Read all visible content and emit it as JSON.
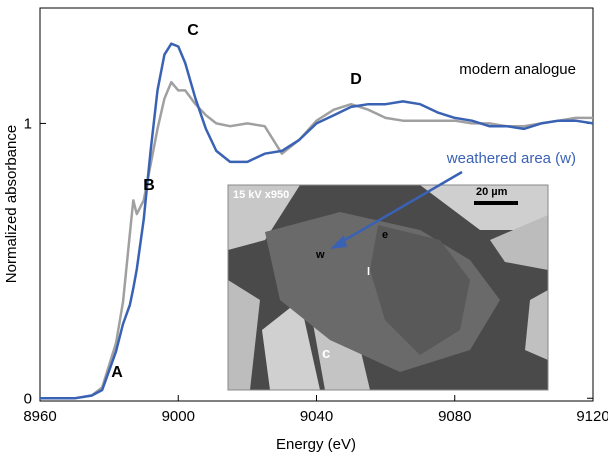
{
  "chart_data": {
    "type": "line",
    "xlabel": "Energy (eV)",
    "ylabel": "Normalized absorbance",
    "xlim": [
      8960,
      9120
    ],
    "xticks": [
      8960,
      9000,
      9040,
      9080,
      9120
    ],
    "ylim": [
      -0.01,
      1.42
    ],
    "yticks": [
      0,
      1
    ],
    "x": [
      8960,
      8970,
      8975,
      8978,
      8982,
      8984,
      8986,
      8987,
      8988,
      8990,
      8992,
      8994,
      8996,
      8998,
      9000,
      9002,
      9005,
      9008,
      9011,
      9015,
      9020,
      9025,
      9030,
      9035,
      9040,
      9045,
      9050,
      9055,
      9060,
      9065,
      9070,
      9075,
      9080,
      9085,
      9090,
      9095,
      9100,
      9105,
      9110,
      9115,
      9120
    ],
    "series": [
      {
        "name": "modern analogue",
        "color": "#a0a0a0",
        "values": [
          0,
          0,
          0.01,
          0.04,
          0.2,
          0.35,
          0.6,
          0.72,
          0.67,
          0.72,
          0.85,
          0.98,
          1.09,
          1.15,
          1.12,
          1.12,
          1.07,
          1.03,
          1.0,
          0.99,
          1.0,
          0.99,
          0.89,
          0.94,
          1.01,
          1.05,
          1.07,
          1.05,
          1.02,
          1.01,
          1.01,
          1.01,
          1.01,
          1.0,
          1.0,
          0.99,
          0.99,
          1.0,
          1.01,
          1.02,
          1.02
        ]
      },
      {
        "name": "weathered area (w)",
        "color": "#3a62b4",
        "values": [
          0,
          0,
          0.01,
          0.03,
          0.17,
          0.27,
          0.34,
          0.4,
          0.47,
          0.65,
          0.9,
          1.12,
          1.25,
          1.29,
          1.28,
          1.22,
          1.09,
          0.98,
          0.9,
          0.86,
          0.86,
          0.89,
          0.9,
          0.94,
          1.0,
          1.03,
          1.06,
          1.07,
          1.07,
          1.08,
          1.07,
          1.04,
          1.02,
          1.01,
          0.99,
          0.99,
          0.98,
          1.0,
          1.01,
          1.01,
          1.0
        ]
      }
    ],
    "annotations": [
      "A",
      "B",
      "C",
      "D"
    ],
    "inset_labels": [
      "15 kV  x950",
      "20 µm",
      "w",
      "e",
      "l",
      "c"
    ]
  }
}
